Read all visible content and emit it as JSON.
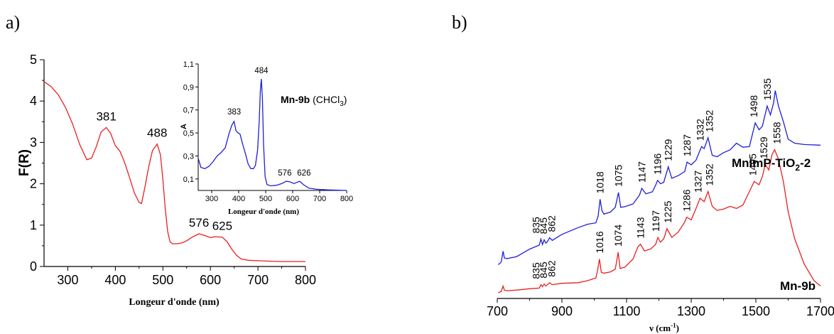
{
  "panels": {
    "a_label": "a)",
    "b_label": "b)"
  },
  "colors": {
    "red": "#e82020",
    "blue": "#1f1fd8",
    "axis": "#000000"
  },
  "chart_data": [
    {
      "id": "a_main",
      "type": "line",
      "xlabel": "Longeur d'onde (nm)",
      "ylabel": "F(R)",
      "xlim": [
        250,
        800
      ],
      "ylim": [
        0,
        5
      ],
      "xticks": [
        300,
        400,
        500,
        600,
        700,
        800
      ],
      "yticks": [
        0,
        1,
        2,
        3,
        4,
        5
      ],
      "series": [
        {
          "color": "#e82020",
          "x": [
            250,
            265,
            280,
            295,
            310,
            325,
            340,
            350,
            360,
            370,
            381,
            390,
            400,
            410,
            420,
            430,
            440,
            450,
            455,
            462,
            470,
            478,
            488,
            495,
            500,
            505,
            510,
            515,
            520,
            530,
            540,
            550,
            560,
            576,
            590,
            600,
            610,
            625,
            635,
            645,
            655,
            665,
            680,
            700,
            720,
            750,
            800
          ],
          "y": [
            4.47,
            4.35,
            4.15,
            3.85,
            3.45,
            2.95,
            2.58,
            2.62,
            2.9,
            3.25,
            3.36,
            3.22,
            2.92,
            2.78,
            2.5,
            2.15,
            1.78,
            1.55,
            1.52,
            1.9,
            2.4,
            2.8,
            2.96,
            2.7,
            2.1,
            1.4,
            0.85,
            0.6,
            0.55,
            0.55,
            0.57,
            0.62,
            0.7,
            0.79,
            0.74,
            0.7,
            0.72,
            0.71,
            0.6,
            0.42,
            0.27,
            0.18,
            0.15,
            0.14,
            0.13,
            0.12,
            0.12
          ]
        }
      ],
      "annotations": [
        {
          "text": "381",
          "x": 381,
          "y": 3.36
        },
        {
          "text": "488",
          "x": 488,
          "y": 2.96
        },
        {
          "text": "576",
          "x": 576,
          "y": 0.79
        },
        {
          "text": "625",
          "x": 625,
          "y": 0.71
        }
      ]
    },
    {
      "id": "a_inset",
      "type": "line",
      "title": "Mn-9b",
      "title_suffix": " (CHCl",
      "title_subscript": "3",
      "title_close": ")",
      "xlabel": "Longeur d'onde (nm)",
      "ylabel": "A",
      "xlim": [
        250,
        800
      ],
      "ylim": [
        0,
        1.1
      ],
      "xticks": [
        300,
        400,
        500,
        600,
        700,
        800
      ],
      "yticks": [
        0.1,
        0.3,
        0.5,
        0.7,
        0.9,
        1.1
      ],
      "ytick_labels": [
        "0,1",
        "0,3",
        "0,5",
        "0,7",
        "0,9",
        "1,1"
      ],
      "series": [
        {
          "color": "#1f1fd8",
          "x": [
            250,
            260,
            275,
            290,
            305,
            320,
            335,
            350,
            365,
            375,
            383,
            390,
            398,
            405,
            415,
            425,
            435,
            445,
            455,
            462,
            470,
            476,
            480,
            484,
            488,
            492,
            498,
            505,
            520,
            540,
            560,
            576,
            590,
            605,
            615,
            626,
            640,
            660,
            690,
            730,
            800
          ],
          "y": [
            0.28,
            0.2,
            0.19,
            0.21,
            0.25,
            0.3,
            0.33,
            0.37,
            0.5,
            0.57,
            0.6,
            0.52,
            0.5,
            0.49,
            0.4,
            0.32,
            0.23,
            0.19,
            0.19,
            0.22,
            0.35,
            0.6,
            0.86,
            0.97,
            0.8,
            0.4,
            0.12,
            0.05,
            0.04,
            0.045,
            0.06,
            0.08,
            0.075,
            0.06,
            0.07,
            0.08,
            0.05,
            0.02,
            0.01,
            0.005,
            0.0
          ]
        }
      ],
      "annotations": [
        {
          "text": "383",
          "x": 383,
          "y": 0.6
        },
        {
          "text": "484",
          "x": 484,
          "y": 0.97
        },
        {
          "text": "576",
          "x": 576,
          "y": 0.08
        },
        {
          "text": "626",
          "x": 626,
          "y": 0.08
        }
      ]
    },
    {
      "id": "b_raman",
      "type": "line",
      "xlabel": "ν (cm-1)",
      "xlabel_main": "ν (cm",
      "xlabel_sup": "-1",
      "xlabel_close": ")",
      "xlim": [
        700,
        1700
      ],
      "xticks": [
        700,
        900,
        1100,
        1300,
        1500,
        1700
      ],
      "yticks": [],
      "series": [
        {
          "name": "MnImP-TiO2-2",
          "name_main": "MnImP-TiO",
          "name_sub": "2",
          "name_suffix": "-2",
          "color": "#1f1fd8",
          "x": [
            703,
            712,
            718,
            722,
            730,
            760,
            800,
            830,
            835,
            840,
            845,
            850,
            855,
            862,
            870,
            900,
            950,
            980,
            1005,
            1012,
            1018,
            1024,
            1030,
            1050,
            1065,
            1075,
            1082,
            1095,
            1120,
            1140,
            1147,
            1160,
            1180,
            1190,
            1196,
            1205,
            1215,
            1229,
            1240,
            1260,
            1280,
            1287,
            1300,
            1315,
            1332,
            1340,
            1352,
            1365,
            1380,
            1400,
            1420,
            1440,
            1460,
            1480,
            1498,
            1510,
            1520,
            1535,
            1545,
            1555,
            1560,
            1570,
            1585,
            1600,
            1620,
            1650,
            1700
          ],
          "y": [
            0.1,
            0.14,
            0.3,
            0.2,
            0.19,
            0.22,
            0.33,
            0.39,
            0.48,
            0.4,
            0.47,
            0.42,
            0.44,
            0.5,
            0.46,
            0.55,
            0.65,
            0.7,
            0.72,
            0.82,
            1.07,
            0.9,
            0.85,
            0.88,
            0.95,
            1.17,
            0.95,
            0.96,
            1.0,
            1.13,
            1.23,
            1.15,
            1.18,
            1.28,
            1.35,
            1.3,
            1.32,
            1.55,
            1.38,
            1.42,
            1.48,
            1.62,
            1.58,
            1.65,
            1.85,
            1.82,
            1.98,
            1.72,
            1.7,
            1.76,
            1.8,
            1.9,
            1.84,
            1.85,
            2.2,
            2.1,
            2.15,
            2.45,
            2.32,
            2.5,
            2.68,
            2.45,
            2.22,
            1.96,
            1.9,
            1.88,
            1.87
          ]
        },
        {
          "name": "Mn-9b",
          "color": "#e82020",
          "x": [
            703,
            712,
            718,
            722,
            730,
            760,
            800,
            830,
            835,
            840,
            845,
            850,
            855,
            862,
            870,
            900,
            950,
            980,
            1005,
            1010,
            1016,
            1022,
            1030,
            1050,
            1065,
            1074,
            1080,
            1095,
            1120,
            1135,
            1143,
            1155,
            1175,
            1190,
            1197,
            1205,
            1215,
            1225,
            1240,
            1260,
            1280,
            1286,
            1300,
            1315,
            1327,
            1340,
            1352,
            1365,
            1380,
            1400,
            1420,
            1440,
            1460,
            1480,
            1495,
            1510,
            1520,
            1529,
            1540,
            1550,
            1558,
            1570,
            1585,
            1600,
            1620,
            1650,
            1680,
            1700
          ],
          "y": [
            0.0,
            0.02,
            0.1,
            0.04,
            0.03,
            0.04,
            0.06,
            0.07,
            0.12,
            0.09,
            0.13,
            0.1,
            0.12,
            0.15,
            0.12,
            0.14,
            0.15,
            0.18,
            0.22,
            0.32,
            0.5,
            0.3,
            0.29,
            0.31,
            0.35,
            0.6,
            0.36,
            0.38,
            0.5,
            0.68,
            0.72,
            0.62,
            0.65,
            0.72,
            0.82,
            0.75,
            0.8,
            0.95,
            0.82,
            0.9,
            1.05,
            1.12,
            1.08,
            1.25,
            1.4,
            1.35,
            1.5,
            1.28,
            1.22,
            1.24,
            1.28,
            1.25,
            1.3,
            1.5,
            1.65,
            1.6,
            1.72,
            1.9,
            1.82,
            2.05,
            2.12,
            1.98,
            1.65,
            1.2,
            0.8,
            0.42,
            0.18,
            0.1
          ]
        }
      ],
      "annotations_blue": [
        "835",
        "845",
        "862",
        "1018",
        "1075",
        "1147",
        "1196",
        "1229",
        "1287",
        "1332",
        "1352",
        "1498",
        "1535"
      ],
      "annotations_red": [
        "835",
        "845",
        "862",
        "1016",
        "1074",
        "1143",
        "1197",
        "1225",
        "1286",
        "1327",
        "1352",
        "1495",
        "1529",
        "1558"
      ]
    }
  ]
}
